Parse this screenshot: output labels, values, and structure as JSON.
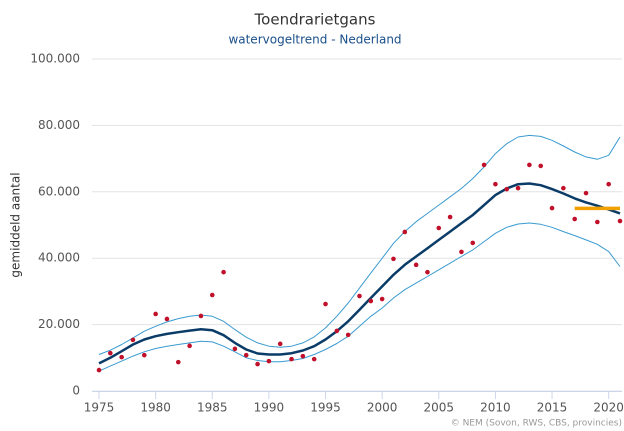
{
  "chart_data": {
    "type": "line",
    "title": "Toendrarietgans",
    "subtitle": "watervogeltrend - Nederland",
    "y_label": "gemiddeld aantal",
    "credit": "© NEM (Sovon, RWS, CBS, provincies)",
    "x": [
      1975,
      1976,
      1977,
      1978,
      1979,
      1980,
      1981,
      1982,
      1983,
      1984,
      1985,
      1986,
      1987,
      1988,
      1989,
      1990,
      1991,
      1992,
      1993,
      1994,
      1995,
      1996,
      1997,
      1998,
      1999,
      2000,
      2001,
      2002,
      2003,
      2004,
      2005,
      2006,
      2007,
      2008,
      2009,
      2010,
      2011,
      2012,
      2013,
      2014,
      2015,
      2016,
      2017,
      2018,
      2019,
      2020,
      2021
    ],
    "xlim": [
      1975,
      2021
    ],
    "xticks": [
      1975,
      1980,
      1985,
      1990,
      1995,
      2000,
      2005,
      2010,
      2015,
      2020
    ],
    "ylim": [
      0,
      100000
    ],
    "yticks": [
      {
        "value": 0,
        "label": "0"
      },
      {
        "value": 20000,
        "label": "20.000"
      },
      {
        "value": 40000,
        "label": "40.000"
      },
      {
        "value": 60000,
        "label": "60.000"
      },
      {
        "value": 80000,
        "label": "80.000"
      },
      {
        "value": 100000,
        "label": "100.000"
      }
    ],
    "grid": true,
    "series": [
      {
        "color": "#3a9bd0",
        "width": 1,
        "values": [
          11000,
          12300,
          14000,
          16000,
          18000,
          19500,
          20800,
          21800,
          22500,
          22900,
          22500,
          21000,
          18500,
          16200,
          14500,
          13500,
          13200,
          13500,
          14500,
          16300,
          19000,
          22500,
          26500,
          31000,
          35500,
          40000,
          44500,
          48000,
          51000,
          53500,
          56000,
          58500,
          61000,
          64000,
          67500,
          71500,
          74500,
          76500,
          77000,
          76700,
          75500,
          73800,
          72000,
          70500,
          69800,
          71000,
          76500
        ]
      },
      {
        "color": "#3a9bd0",
        "width": 1,
        "values": [
          6000,
          7500,
          9000,
          10500,
          11800,
          12800,
          13500,
          14000,
          14500,
          15000,
          14800,
          13500,
          11800,
          10000,
          9200,
          8800,
          8800,
          9200,
          9800,
          11000,
          12500,
          14300,
          16500,
          19500,
          22500,
          25000,
          28000,
          30500,
          32500,
          34500,
          36500,
          38500,
          40500,
          42500,
          45000,
          47500,
          49300,
          50300,
          50600,
          50200,
          49300,
          48000,
          46800,
          45500,
          44200,
          42000,
          37500
        ]
      },
      {
        "color": "#0b3c68",
        "width": 2.5,
        "values": [
          8300,
          10000,
          12000,
          14000,
          15500,
          16500,
          17200,
          17700,
          18200,
          18600,
          18300,
          16800,
          14500,
          12500,
          11300,
          11000,
          11000,
          11400,
          12200,
          13500,
          15500,
          18000,
          21000,
          24500,
          28000,
          31500,
          35000,
          38000,
          40500,
          43000,
          45500,
          48000,
          50500,
          53000,
          56000,
          59000,
          61000,
          62300,
          62500,
          62000,
          60800,
          59500,
          58000,
          56800,
          55800,
          54700,
          53500
        ]
      },
      {
        "color": "#c0102a",
        "mode": "markers",
        "values": [
          6300,
          11400,
          10200,
          15400,
          10800,
          23200,
          21700,
          8700,
          13600,
          22600,
          28900,
          35800,
          12700,
          10800,
          8100,
          9000,
          14200,
          9600,
          10500,
          9600,
          26200,
          18100,
          16900,
          28600,
          27100,
          27700,
          39800,
          47900,
          38000,
          35800,
          49100,
          52400,
          41900,
          44600,
          68100,
          62300,
          60800,
          61100,
          68100,
          67800,
          55100,
          61100,
          51800,
          59600,
          50900,
          62300,
          51200
        ]
      },
      {
        "color": "#f0a000",
        "width": 3.5,
        "values": [
          null,
          null,
          null,
          null,
          null,
          null,
          null,
          null,
          null,
          null,
          null,
          null,
          null,
          null,
          null,
          null,
          null,
          null,
          null,
          null,
          null,
          null,
          null,
          null,
          null,
          null,
          null,
          null,
          null,
          null,
          null,
          null,
          null,
          null,
          null,
          null,
          null,
          null,
          null,
          null,
          null,
          null,
          55000,
          55000,
          55000,
          55000,
          55000
        ]
      }
    ]
  }
}
